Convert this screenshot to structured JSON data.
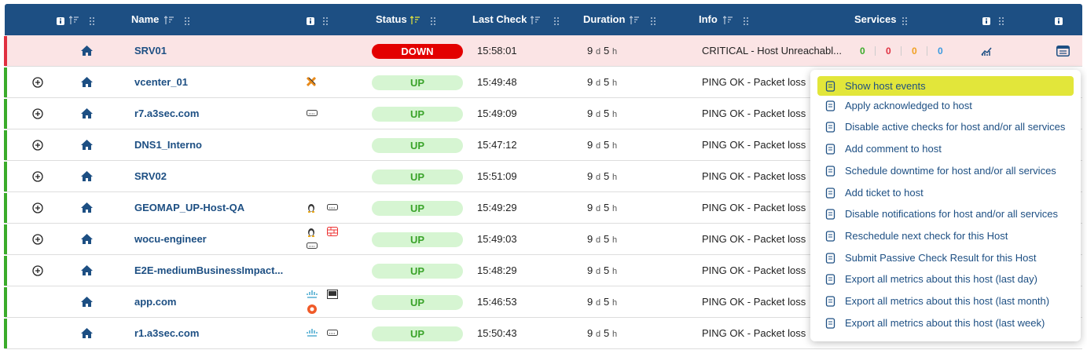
{
  "table": {
    "columns": {
      "name": "Name",
      "status": "Status",
      "last_check": "Last Check",
      "duration": "Duration",
      "info": "Info",
      "services": "Services"
    },
    "duration_units": {
      "days": "d",
      "hours": "h"
    },
    "rows": [
      {
        "name": "SRV01",
        "status": "DOWN",
        "last_check": "15:58:01",
        "days": 9,
        "hours": 5,
        "info": "CRITICAL - Host Unreachabl...",
        "services": [
          0,
          0,
          0,
          0
        ]
      },
      {
        "name": "vcenter_01",
        "status": "UP",
        "last_check": "15:49:48",
        "days": 9,
        "hours": 5,
        "info": "PING OK - Packet loss"
      },
      {
        "name": "r7.a3sec.com",
        "status": "UP",
        "last_check": "15:49:09",
        "days": 9,
        "hours": 5,
        "info": "PING OK - Packet loss"
      },
      {
        "name": "DNS1_Interno",
        "status": "UP",
        "last_check": "15:47:12",
        "days": 9,
        "hours": 5,
        "info": "PING OK - Packet loss"
      },
      {
        "name": "SRV02",
        "status": "UP",
        "last_check": "15:51:09",
        "days": 9,
        "hours": 5,
        "info": "PING OK - Packet loss"
      },
      {
        "name": "GEOMAP_UP-Host-QA",
        "status": "UP",
        "last_check": "15:49:29",
        "days": 9,
        "hours": 5,
        "info": "PING OK - Packet loss"
      },
      {
        "name": "wocu-engineer",
        "status": "UP",
        "last_check": "15:49:03",
        "days": 9,
        "hours": 5,
        "info": "PING OK - Packet loss"
      },
      {
        "name": "E2E-mediumBusinessImpact...",
        "status": "UP",
        "last_check": "15:48:29",
        "days": 9,
        "hours": 5,
        "info": "PING OK - Packet loss"
      },
      {
        "name": "app.com",
        "status": "UP",
        "last_check": "15:46:53",
        "days": 9,
        "hours": 5,
        "info": "PING OK - Packet loss"
      },
      {
        "name": "r1.a3sec.com",
        "status": "UP",
        "last_check": "15:50:43",
        "days": 9,
        "hours": 5,
        "info": "PING OK - Packet loss"
      }
    ]
  },
  "context_menu": {
    "items": [
      "Show host events",
      "Apply acknowledged to host",
      "Disable active checks for host and/or all services",
      "Add comment to host",
      "Schedule downtime for host and/or all services",
      "Add ticket to host",
      "Disable notifications for host and/or all services",
      "Reschedule next check for this Host",
      "Submit Passive Check Result for this Host",
      "Export all metrics about this host (last day)",
      "Export all metrics about this host (last month)",
      "Export all metrics about this host (last week)"
    ]
  }
}
